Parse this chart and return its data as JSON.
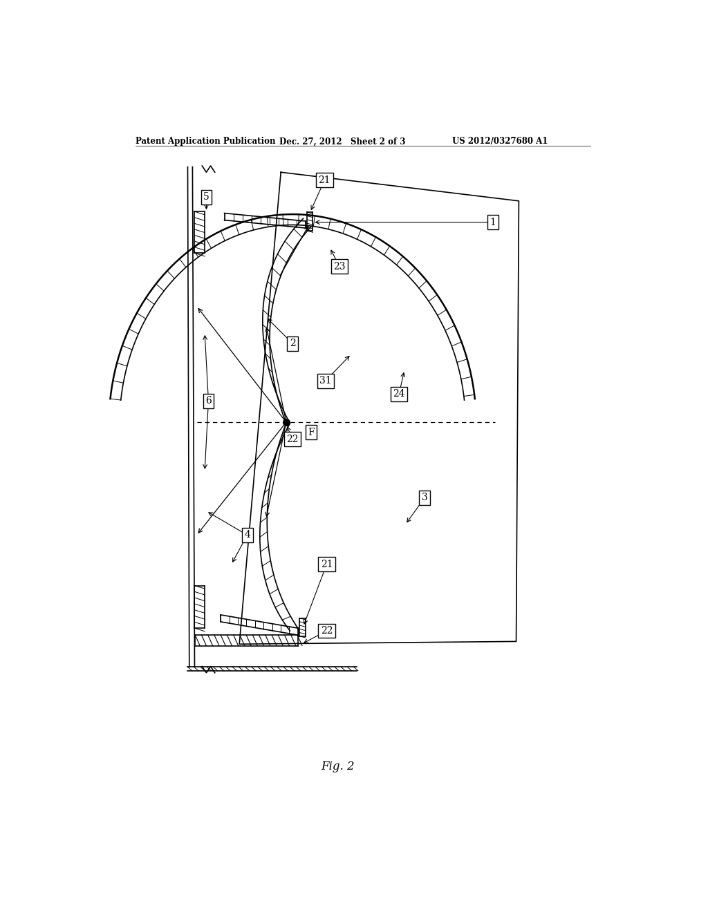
{
  "bg_color": "#ffffff",
  "header_left": "Patent Application Publication",
  "header_mid": "Dec. 27, 2012   Sheet 2 of 3",
  "header_right": "US 2012/0327680 A1",
  "fig_label": "Fig. 2"
}
